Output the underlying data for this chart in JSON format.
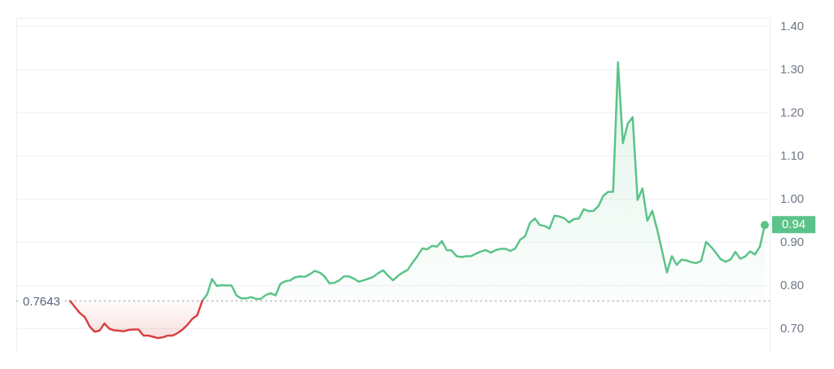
{
  "chart_data": {
    "type": "area",
    "categories": [
      null,
      null,
      null,
      null,
      null,
      null,
      null,
      null,
      null,
      null,
      null,
      null,
      null,
      null,
      null,
      null,
      null,
      null,
      null,
      null,
      null,
      null,
      null,
      null,
      null,
      null,
      null,
      null,
      null,
      null,
      null,
      null,
      null,
      null,
      null,
      null,
      null,
      null,
      null,
      null,
      null,
      null,
      null,
      null,
      null,
      null,
      null,
      null,
      null,
      null,
      null,
      null,
      null,
      null,
      null,
      null,
      null,
      null,
      null,
      null,
      null,
      null,
      null,
      null,
      null,
      null,
      null,
      null,
      null,
      null,
      null,
      null,
      null,
      null,
      null,
      null,
      null,
      null,
      null,
      null,
      null,
      null,
      null,
      null,
      null,
      null,
      null,
      null,
      null,
      null,
      null,
      null,
      null,
      null,
      null,
      null,
      null,
      null,
      null,
      null,
      null,
      null,
      null,
      null,
      null,
      null,
      null,
      null,
      null,
      null,
      null,
      null,
      null,
      null,
      null,
      null,
      null,
      null,
      null,
      null,
      null,
      null,
      null,
      null,
      null,
      null,
      null,
      null,
      null,
      null,
      null,
      null,
      null,
      null,
      null,
      null,
      null,
      null,
      null,
      null,
      null,
      null,
      null,
      null,
      null,
      null,
      null,
      null,
      null,
      null,
      null,
      null,
      null,
      null,
      null
    ],
    "series": [
      {
        "color": "#d8413f",
        "values": [
          null,
          null,
          null,
          null,
          null,
          null,
          null,
          null,
          null,
          null,
          null,
          0.764,
          0.75,
          0.736,
          0.727,
          0.705,
          0.693,
          0.695,
          0.712,
          0.7,
          0.696,
          0.695,
          0.694,
          0.697,
          0.698,
          0.698,
          0.684,
          0.684,
          0.681,
          0.678,
          0.68,
          0.684,
          0.684,
          0.69,
          0.698,
          0.709,
          0.723,
          0.731,
          0.764,
          null,
          null,
          null,
          null,
          null,
          null,
          null,
          null,
          null,
          null,
          null,
          null,
          null,
          null,
          null,
          null,
          null,
          null,
          null,
          null,
          null,
          null,
          null,
          null,
          null,
          null,
          null,
          null,
          null,
          null,
          null,
          null,
          null,
          null,
          null,
          null,
          null,
          null,
          null,
          null,
          null,
          null,
          null,
          null,
          null,
          null,
          null,
          null,
          null,
          null,
          null,
          null,
          null,
          null,
          null,
          null,
          null,
          null,
          null,
          null,
          null,
          null,
          null,
          null,
          null,
          null,
          null,
          null,
          null,
          null,
          null,
          null,
          null,
          null,
          null,
          null,
          null,
          null,
          null,
          null,
          null,
          null,
          null,
          null,
          null,
          null,
          null,
          null,
          null,
          null,
          null,
          null,
          null,
          null,
          null,
          null,
          null,
          null,
          null,
          null,
          null,
          null,
          null,
          null,
          null,
          null,
          null,
          null,
          null,
          null,
          null,
          null,
          null,
          null,
          null,
          null
        ]
      },
      {
        "color": "#5bc389",
        "values": [
          null,
          null,
          null,
          null,
          null,
          null,
          null,
          null,
          null,
          null,
          null,
          null,
          null,
          null,
          null,
          null,
          null,
          null,
          null,
          null,
          null,
          null,
          null,
          null,
          null,
          null,
          null,
          null,
          null,
          null,
          null,
          null,
          null,
          null,
          null,
          null,
          null,
          null,
          0.764,
          0.779,
          0.815,
          0.799,
          0.801,
          0.8,
          0.8,
          0.777,
          0.77,
          0.77,
          0.773,
          0.769,
          0.769,
          0.778,
          0.782,
          0.777,
          0.804,
          0.81,
          0.812,
          0.819,
          0.821,
          0.82,
          0.826,
          0.834,
          0.83,
          0.821,
          0.805,
          0.806,
          0.812,
          0.821,
          0.821,
          0.816,
          0.809,
          0.812,
          0.816,
          0.82,
          0.829,
          0.835,
          0.823,
          0.812,
          0.822,
          0.83,
          0.836,
          0.853,
          0.868,
          0.886,
          0.884,
          0.892,
          0.89,
          0.903,
          0.882,
          0.881,
          0.868,
          0.866,
          0.868,
          0.868,
          0.874,
          0.879,
          0.882,
          0.876,
          0.882,
          0.885,
          0.885,
          0.88,
          0.886,
          0.906,
          0.914,
          0.945,
          0.955,
          0.94,
          0.938,
          0.932,
          0.962,
          0.96,
          0.956,
          0.946,
          0.954,
          0.955,
          0.977,
          0.972,
          0.973,
          0.984,
          1.008,
          1.017,
          1.017,
          1.317,
          1.13,
          1.175,
          1.19,
          0.998,
          1.025,
          0.95,
          0.973,
          0.93,
          0.88,
          0.83,
          0.868,
          0.848,
          0.86,
          0.858,
          0.854,
          0.852,
          0.857,
          0.901,
          0.89,
          0.876,
          0.861,
          0.855,
          0.86,
          0.878,
          0.862,
          0.867,
          0.879,
          0.872,
          0.89,
          0.94,
          null
        ],
        "value_labels": [
          null,
          null,
          null,
          null,
          null,
          null,
          null,
          null,
          null,
          null,
          null,
          null,
          null,
          null,
          null,
          null,
          null,
          null,
          null,
          null,
          null,
          null,
          null,
          null,
          null,
          null,
          null,
          null,
          null,
          null,
          null,
          null,
          null,
          null,
          null,
          null,
          null,
          null,
          null,
          null,
          null,
          null,
          null,
          null,
          null,
          null,
          null,
          null,
          null,
          null,
          null,
          null,
          null,
          null,
          null,
          null,
          null,
          null,
          null,
          null,
          null,
          null,
          null,
          null,
          null,
          null,
          null,
          null,
          null,
          null,
          null,
          null,
          null,
          null,
          null,
          null,
          null,
          null,
          null,
          null,
          null,
          null,
          null,
          null,
          null,
          null,
          null,
          null,
          null,
          null,
          null,
          null,
          null,
          null,
          null,
          null,
          null,
          null,
          null,
          null,
          null,
          null,
          null,
          null,
          null,
          null,
          null,
          null,
          null,
          null,
          null,
          null,
          null,
          null,
          null,
          null,
          null,
          null,
          null,
          null,
          null,
          null,
          null,
          null,
          null,
          null,
          null,
          null,
          null,
          null,
          null,
          null,
          null,
          null,
          null,
          null,
          null,
          null,
          null,
          null,
          null,
          null,
          null,
          null,
          null,
          null,
          null,
          null,
          null,
          null,
          null,
          null,
          null,
          "0.94",
          null
        ]
      }
    ],
    "ylim": [
      0.648,
      1.42
    ],
    "yticks": [
      {
        "value": 0.7,
        "label": "0.70"
      },
      {
        "value": 0.8,
        "label": "0.80"
      },
      {
        "value": 0.9,
        "label": "0.90"
      },
      {
        "value": 1.0,
        "label": "1.00"
      },
      {
        "value": 1.1,
        "label": "1.10"
      },
      {
        "value": 1.2,
        "label": "1.20"
      },
      {
        "value": 1.3,
        "label": "1.30"
      },
      {
        "value": 1.4,
        "label": "1.40"
      }
    ],
    "ref_lines": [
      {
        "axis": "y",
        "value": 0.7643,
        "label": "0.7643",
        "color": "#9ca0a8",
        "line_style": "dotted"
      }
    ],
    "grid": "y",
    "tick_labels": "y"
  }
}
